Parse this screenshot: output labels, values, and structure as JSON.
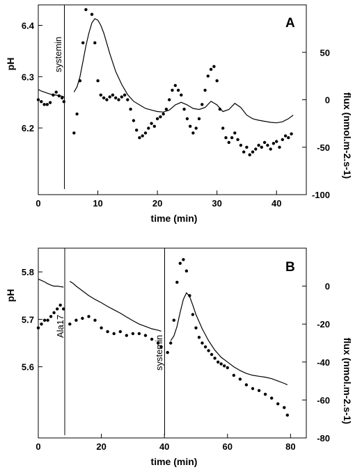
{
  "chart_data": [
    {
      "type": "line",
      "panel_label": "A",
      "xlabel": "time (min)",
      "ylabel_left": "pH",
      "ylabel_right": "flux (nmol.m-2.s-1)",
      "xlim": [
        0,
        45
      ],
      "ylim_left": [
        6.07,
        6.44
      ],
      "ylim_right": [
        -100,
        100
      ],
      "x_ticks": [
        0,
        10,
        20,
        30,
        40
      ],
      "y_ticks_left": [
        6.2,
        6.3,
        6.4
      ],
      "y_ticks_right": [
        -100,
        -50,
        0,
        50
      ],
      "annotations": [
        {
          "label": "systemin",
          "x": 4.5
        }
      ],
      "series": [
        {
          "axis": "left",
          "style": "line",
          "segments": [
            {
              "x": [
                0,
                0.5,
                1,
                1.5,
                2,
                2.5,
                3,
                3.5,
                4,
                4.4
              ],
              "y": [
                6.275,
                6.272,
                6.27,
                6.268,
                6.266,
                6.265,
                6.264,
                6.263,
                6.262,
                6.26
              ]
            },
            {
              "x": [
                6,
                6.5,
                7,
                7.5,
                8,
                8.5,
                9,
                9.5,
                10,
                10.5,
                11,
                11.5,
                12,
                13,
                14,
                15,
                16,
                17,
                18,
                19,
                20,
                21,
                22,
                23,
                24,
                25,
                26,
                27,
                28,
                29,
                30,
                31,
                32,
                33,
                34,
                35,
                36,
                37,
                38,
                39,
                40,
                41,
                42,
                42.8
              ],
              "y": [
                6.27,
                6.28,
                6.3,
                6.33,
                6.36,
                6.385,
                6.405,
                6.413,
                6.41,
                6.4,
                6.385,
                6.365,
                6.345,
                6.31,
                6.285,
                6.265,
                6.252,
                6.245,
                6.238,
                6.235,
                6.232,
                6.231,
                6.235,
                6.245,
                6.25,
                6.245,
                6.238,
                6.236,
                6.24,
                6.252,
                6.245,
                6.232,
                6.236,
                6.248,
                6.24,
                6.225,
                6.218,
                6.215,
                6.213,
                6.211,
                6.21,
                6.212,
                6.218,
                6.225
              ]
            }
          ]
        },
        {
          "axis": "right",
          "style": "dots",
          "segments": [
            {
              "x": [
                0,
                0.5,
                1,
                1.5,
                2,
                2.5,
                3,
                3.5,
                4,
                4.3
              ],
              "y": [
                0,
                -2,
                -5,
                -5,
                -3,
                5,
                8,
                4,
                2,
                -2
              ]
            },
            {
              "x": [
                6,
                6.5,
                7,
                7.5,
                8,
                8.5,
                9,
                9.5,
                10,
                10.5,
                11,
                11.5,
                12,
                12.5,
                13,
                13.5,
                14,
                14.5,
                15,
                15.5,
                16,
                16.5,
                17,
                17.5,
                18,
                18.5,
                19,
                19.5,
                20,
                20.5,
                21,
                21.5,
                22,
                22.5,
                23,
                23.5,
                24,
                24.5,
                25,
                25.5,
                26,
                26.5,
                27,
                27.5,
                28,
                28.5,
                29,
                29.5,
                30,
                30.5,
                31,
                31.5,
                32,
                32.5,
                33,
                33.5,
                34,
                34.5,
                35,
                35.5,
                36,
                36.5,
                37,
                37.5,
                38,
                38.5,
                39,
                39.5,
                40,
                40.5,
                41,
                41.5,
                42,
                42.5
              ],
              "y": [
                -35,
                -15,
                20,
                60,
                95,
                108,
                90,
                60,
                20,
                5,
                2,
                0,
                3,
                5,
                2,
                0,
                3,
                5,
                0,
                -10,
                -22,
                -32,
                -40,
                -38,
                -35,
                -30,
                -25,
                -28,
                -20,
                -18,
                -15,
                -10,
                0,
                10,
                15,
                10,
                5,
                -10,
                -20,
                -28,
                -35,
                -30,
                -20,
                -5,
                10,
                25,
                32,
                35,
                20,
                -10,
                -30,
                -40,
                -45,
                -40,
                -35,
                -42,
                -48,
                -55,
                -50,
                -58,
                -55,
                -52,
                -48,
                -50,
                -45,
                -48,
                -52,
                -46,
                -44,
                -50,
                -42,
                -38,
                -40,
                -36
              ]
            }
          ]
        }
      ]
    },
    {
      "type": "line",
      "panel_label": "B",
      "xlabel": "time (min)",
      "ylabel_left": "pH",
      "ylabel_right": "flux (nmol.m-2.s-1)",
      "xlim": [
        0,
        85
      ],
      "ylim_left": [
        5.45,
        5.85
      ],
      "ylim_right": [
        -80,
        20
      ],
      "x_ticks": [
        0,
        20,
        40,
        60,
        80
      ],
      "y_ticks_left": [
        5.6,
        5.7,
        5.8
      ],
      "y_ticks_right": [
        -80,
        -60,
        -40,
        -20,
        0
      ],
      "annotations": [
        {
          "label": "Ala17",
          "x": 8.5
        },
        {
          "label": "systemin",
          "x": 39.5
        }
      ],
      "series": [
        {
          "axis": "left",
          "style": "line",
          "segments": [
            {
              "x": [
                0,
                1,
                2,
                3,
                4,
                5,
                6,
                7,
                8
              ],
              "y": [
                5.785,
                5.782,
                5.779,
                5.775,
                5.772,
                5.77,
                5.77,
                5.769,
                5.768
              ]
            },
            {
              "x": [
                10,
                11,
                12,
                14,
                16,
                18,
                20,
                22,
                24,
                26,
                28,
                30,
                32,
                34,
                36,
                38,
                39
              ],
              "y": [
                5.78,
                5.776,
                5.77,
                5.76,
                5.75,
                5.742,
                5.735,
                5.727,
                5.72,
                5.713,
                5.705,
                5.697,
                5.69,
                5.685,
                5.68,
                5.677,
                5.675
              ]
            },
            {
              "x": [
                42,
                43,
                44,
                45,
                46,
                47,
                48,
                49,
                50,
                52,
                54,
                56,
                58,
                60,
                62,
                64,
                66,
                68,
                70,
                72,
                74,
                76,
                78,
                79
              ],
              "y": [
                5.655,
                5.665,
                5.685,
                5.715,
                5.742,
                5.756,
                5.748,
                5.73,
                5.71,
                5.68,
                5.655,
                5.635,
                5.62,
                5.61,
                5.6,
                5.592,
                5.586,
                5.582,
                5.58,
                5.578,
                5.575,
                5.57,
                5.565,
                5.562
              ]
            }
          ]
        },
        {
          "axis": "right",
          "style": "dots",
          "segments": [
            {
              "x": [
                0,
                1,
                2,
                3,
                4,
                5,
                6,
                7,
                8
              ],
              "y": [
                -22,
                -20,
                -18,
                -18,
                -16,
                -14,
                -12,
                -10,
                -12
              ]
            },
            {
              "x": [
                10,
                12,
                14,
                16,
                18,
                20,
                22,
                24,
                26,
                28,
                30,
                32,
                34,
                36,
                38,
                39
              ],
              "y": [
                -20,
                -18,
                -17,
                -16,
                -18,
                -22,
                -24,
                -25,
                -24,
                -26,
                -25,
                -25,
                -26,
                -28,
                -30,
                -32
              ]
            },
            {
              "x": [
                41,
                42,
                43,
                44,
                45,
                46,
                47,
                48,
                49,
                50,
                51,
                52,
                53,
                54,
                55,
                56,
                57,
                58,
                59,
                60,
                62,
                64,
                66,
                68,
                70,
                72,
                74,
                76,
                78,
                79
              ],
              "y": [
                -35,
                -30,
                -18,
                2,
                12,
                14,
                8,
                -5,
                -15,
                -22,
                -27,
                -30,
                -32,
                -34,
                -36,
                -38,
                -40,
                -41,
                -42,
                -43,
                -47,
                -49,
                -52,
                -54,
                -55,
                -57,
                -59,
                -62,
                -64,
                -68
              ]
            }
          ]
        }
      ]
    }
  ]
}
